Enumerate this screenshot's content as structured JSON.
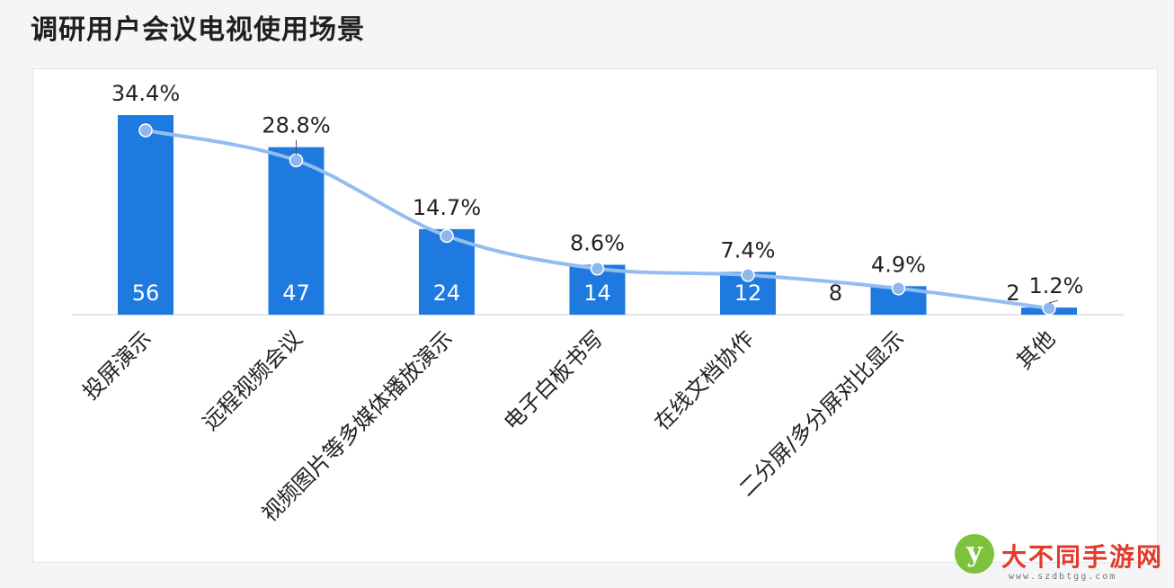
{
  "chart_data": {
    "type": "bar",
    "title": "调研用户会议电视使用场景",
    "categories": [
      "投屏演示",
      "远程视频会议",
      "视频图片等多媒体播放演示",
      "电子白板书写",
      "在线文档协作",
      "二分屏/多分屏对比显示",
      "其他"
    ],
    "values": [
      56,
      47,
      24,
      14,
      12,
      8,
      2
    ],
    "percent_labels": [
      "34.4%",
      "28.8%",
      "14.7%",
      "8.6%",
      "7.4%",
      "4.9%",
      "1.2%"
    ],
    "line_values": [
      34.4,
      28.8,
      14.7,
      8.6,
      7.4,
      4.9,
      1.2
    ],
    "ylim": [
      0,
      57
    ],
    "xlabel": "",
    "ylabel": "",
    "colors": {
      "bar": "#1f7ae0",
      "line": "#93bdf0",
      "point": "#8db8ee",
      "label_in": "#ffffff",
      "label_out": "#222222"
    }
  },
  "watermark": {
    "icon": "leaf-y-logo-icon",
    "logo_letter": "y",
    "name": "大不同手游网",
    "url": "www.szdbtgg.com"
  }
}
